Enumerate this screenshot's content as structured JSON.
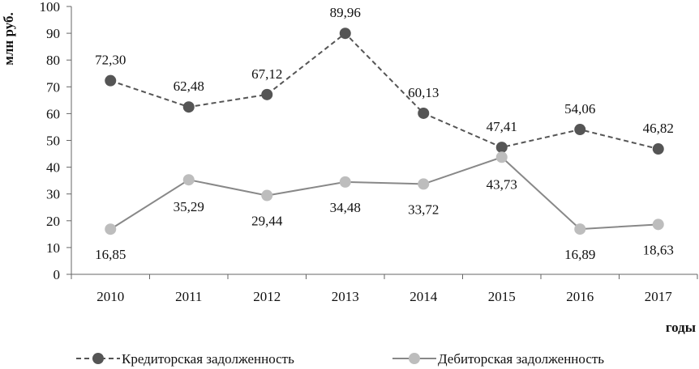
{
  "chart_data": {
    "type": "line",
    "categories": [
      "2010",
      "2011",
      "2012",
      "2013",
      "2014",
      "2015",
      "2016",
      "2017"
    ],
    "ylim": [
      0,
      100
    ],
    "yticks": [
      0,
      10,
      20,
      30,
      40,
      50,
      60,
      70,
      80,
      90,
      100
    ],
    "ylabel": "млн руб.",
    "xlabel": "годы",
    "grid": false,
    "legend_position": "bottom",
    "series": [
      {
        "name": "Кредиторская задолженность",
        "values": [
          72.3,
          62.48,
          67.12,
          89.96,
          60.13,
          47.41,
          54.06,
          46.82
        ],
        "labels": [
          "72,30",
          "62,48",
          "67,12",
          "89,96",
          "60,13",
          "47,41",
          "54,06",
          "46,82"
        ],
        "line_style": "dashed",
        "color": "#555555"
      },
      {
        "name": "Дебиторская задолженность",
        "values": [
          16.85,
          35.29,
          29.44,
          34.48,
          33.72,
          43.73,
          16.89,
          18.63
        ],
        "labels": [
          "16,85",
          "35,29",
          "29,44",
          "34,48",
          "33,72",
          "43,73",
          "16,89",
          "18,63"
        ],
        "line_style": "solid",
        "color": "#888888",
        "marker_color": "#bdbdbd"
      }
    ]
  }
}
